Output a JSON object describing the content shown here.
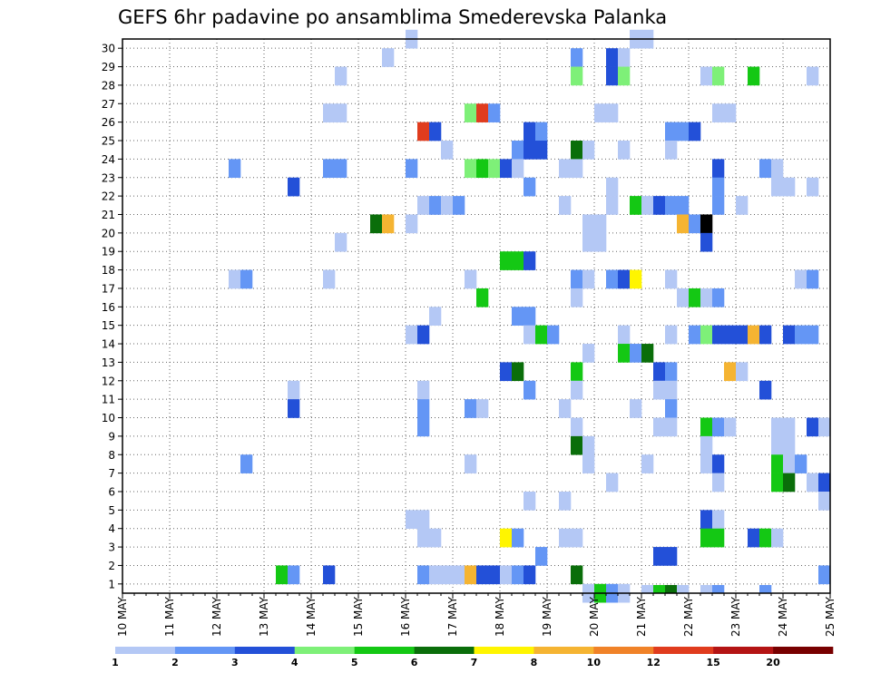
{
  "chart_data": {
    "type": "heatmap",
    "title": "GEFS 6hr padavine po ansamblima Smederevska Palanka",
    "xlabel": "",
    "ylabel": "",
    "x_tick_labels": [
      "10 MAY",
      "11 MAY",
      "12 MAY",
      "13 MAY",
      "14 MAY",
      "15 MAY",
      "16 MAY",
      "17 MAY",
      "18 MAY",
      "19 MAY",
      "20 MAY",
      "21 MAY",
      "22 MAY",
      "23 MAY",
      "24 MAY",
      "25 MAY"
    ],
    "y_tick_labels": [
      "1",
      "2",
      "3",
      "4",
      "5",
      "6",
      "7",
      "8",
      "9",
      "10",
      "11",
      "12",
      "13",
      "14",
      "15",
      "16",
      "17",
      "18",
      "19",
      "20",
      "21",
      "22",
      "23",
      "24",
      "25",
      "26",
      "27",
      "28",
      "29",
      "30"
    ],
    "time_steps": 60,
    "members": 30,
    "grid": true,
    "colorbar": {
      "labels": [
        "1",
        "2",
        "3",
        "4",
        "5",
        "6",
        "7",
        "8",
        "10",
        "12",
        "15",
        "20"
      ],
      "colors": [
        "#b4c8f5",
        "#6496f5",
        "#2350d8",
        "#7ef078",
        "#14c814",
        "#0a6e0a",
        "#fff500",
        "#f5b432",
        "#f08228",
        "#e03c1e",
        "#b41414",
        "#780000"
      ]
    },
    "cells": [
      [
        24,
        30,
        1
      ],
      [
        43,
        30,
        1
      ],
      [
        44,
        30,
        1
      ],
      [
        22,
        29,
        1
      ],
      [
        38,
        29,
        2
      ],
      [
        41,
        29,
        3
      ],
      [
        42,
        29,
        1
      ],
      [
        18,
        28,
        1
      ],
      [
        38,
        28,
        4
      ],
      [
        41,
        28,
        3
      ],
      [
        42,
        28,
        4
      ],
      [
        49,
        28,
        1
      ],
      [
        50,
        28,
        4
      ],
      [
        53,
        28,
        5
      ],
      [
        58,
        28,
        1
      ],
      [
        17,
        26,
        1
      ],
      [
        18,
        26,
        1
      ],
      [
        29,
        26,
        4
      ],
      [
        30,
        26,
        10
      ],
      [
        31,
        26,
        2
      ],
      [
        40,
        26,
        1
      ],
      [
        41,
        26,
        1
      ],
      [
        50,
        26,
        1
      ],
      [
        51,
        26,
        1
      ],
      [
        25,
        25,
        10
      ],
      [
        26,
        25,
        3
      ],
      [
        34,
        25,
        3
      ],
      [
        35,
        25,
        2
      ],
      [
        46,
        25,
        2
      ],
      [
        47,
        25,
        2
      ],
      [
        48,
        25,
        3
      ],
      [
        27,
        24,
        1
      ],
      [
        33,
        24,
        2
      ],
      [
        34,
        24,
        3
      ],
      [
        35,
        24,
        3
      ],
      [
        38,
        24,
        6
      ],
      [
        39,
        24,
        1
      ],
      [
        42,
        24,
        1
      ],
      [
        46,
        24,
        1
      ],
      [
        9,
        23,
        2
      ],
      [
        17,
        23,
        2
      ],
      [
        18,
        23,
        2
      ],
      [
        24,
        23,
        2
      ],
      [
        29,
        23,
        4
      ],
      [
        30,
        23,
        5
      ],
      [
        31,
        23,
        4
      ],
      [
        32,
        23,
        3
      ],
      [
        33,
        23,
        1
      ],
      [
        37,
        23,
        1
      ],
      [
        38,
        23,
        1
      ],
      [
        50,
        23,
        3
      ],
      [
        54,
        23,
        2
      ],
      [
        55,
        23,
        1
      ],
      [
        14,
        22,
        3
      ],
      [
        34,
        22,
        2
      ],
      [
        41,
        22,
        1
      ],
      [
        50,
        22,
        2
      ],
      [
        55,
        22,
        1
      ],
      [
        56,
        22,
        1
      ],
      [
        58,
        22,
        1
      ],
      [
        25,
        21,
        1
      ],
      [
        26,
        21,
        2
      ],
      [
        27,
        21,
        1
      ],
      [
        28,
        21,
        2
      ],
      [
        37,
        21,
        1
      ],
      [
        41,
        21,
        1
      ],
      [
        43,
        21,
        5
      ],
      [
        44,
        21,
        1
      ],
      [
        45,
        21,
        3
      ],
      [
        46,
        21,
        2
      ],
      [
        47,
        21,
        2
      ],
      [
        50,
        21,
        2
      ],
      [
        52,
        21,
        1
      ],
      [
        21,
        20,
        6
      ],
      [
        22,
        20,
        8
      ],
      [
        24,
        20,
        1
      ],
      [
        39,
        20,
        1
      ],
      [
        40,
        20,
        1
      ],
      [
        47,
        20,
        8
      ],
      [
        48,
        20,
        2
      ],
      [
        49,
        20,
        15
      ],
      [
        18,
        19,
        1
      ],
      [
        39,
        19,
        1
      ],
      [
        40,
        19,
        1
      ],
      [
        49,
        19,
        3
      ],
      [
        32,
        18,
        5
      ],
      [
        33,
        18,
        5
      ],
      [
        34,
        18,
        3
      ],
      [
        9,
        17,
        1
      ],
      [
        10,
        17,
        2
      ],
      [
        17,
        17,
        1
      ],
      [
        29,
        17,
        1
      ],
      [
        38,
        17,
        2
      ],
      [
        39,
        17,
        1
      ],
      [
        41,
        17,
        2
      ],
      [
        42,
        17,
        3
      ],
      [
        43,
        17,
        7
      ],
      [
        46,
        17,
        1
      ],
      [
        57,
        17,
        1
      ],
      [
        58,
        17,
        2
      ],
      [
        30,
        16,
        5
      ],
      [
        38,
        16,
        1
      ],
      [
        47,
        16,
        1
      ],
      [
        48,
        16,
        5
      ],
      [
        49,
        16,
        1
      ],
      [
        50,
        16,
        2
      ],
      [
        26,
        15,
        1
      ],
      [
        33,
        15,
        2
      ],
      [
        34,
        15,
        2
      ],
      [
        24,
        14,
        1
      ],
      [
        25,
        14,
        3
      ],
      [
        34,
        14,
        1
      ],
      [
        35,
        14,
        5
      ],
      [
        36,
        14,
        2
      ],
      [
        42,
        14,
        1
      ],
      [
        46,
        14,
        1
      ],
      [
        48,
        14,
        2
      ],
      [
        49,
        14,
        4
      ],
      [
        50,
        14,
        3
      ],
      [
        51,
        14,
        3
      ],
      [
        52,
        14,
        3
      ],
      [
        53,
        14,
        8
      ],
      [
        54,
        14,
        3
      ],
      [
        56,
        14,
        3
      ],
      [
        57,
        14,
        2
      ],
      [
        58,
        14,
        2
      ],
      [
        39,
        13,
        1
      ],
      [
        42,
        13,
        5
      ],
      [
        43,
        13,
        2
      ],
      [
        44,
        13,
        6
      ],
      [
        32,
        12,
        3
      ],
      [
        33,
        12,
        6
      ],
      [
        38,
        12,
        5
      ],
      [
        45,
        12,
        3
      ],
      [
        46,
        12,
        2
      ],
      [
        51,
        12,
        8
      ],
      [
        52,
        12,
        1
      ],
      [
        14,
        11,
        1
      ],
      [
        25,
        11,
        1
      ],
      [
        34,
        11,
        2
      ],
      [
        38,
        11,
        1
      ],
      [
        45,
        11,
        1
      ],
      [
        46,
        11,
        1
      ],
      [
        54,
        11,
        3
      ],
      [
        14,
        10,
        3
      ],
      [
        25,
        10,
        2
      ],
      [
        29,
        10,
        2
      ],
      [
        30,
        10,
        1
      ],
      [
        37,
        10,
        1
      ],
      [
        43,
        10,
        1
      ],
      [
        46,
        10,
        2
      ],
      [
        25,
        9,
        2
      ],
      [
        38,
        9,
        1
      ],
      [
        45,
        9,
        1
      ],
      [
        46,
        9,
        1
      ],
      [
        49,
        9,
        5
      ],
      [
        50,
        9,
        2
      ],
      [
        51,
        9,
        1
      ],
      [
        55,
        9,
        1
      ],
      [
        56,
        9,
        1
      ],
      [
        58,
        9,
        3
      ],
      [
        59,
        9,
        1
      ],
      [
        38,
        8,
        6
      ],
      [
        39,
        8,
        1
      ],
      [
        49,
        8,
        1
      ],
      [
        55,
        8,
        1
      ],
      [
        56,
        8,
        1
      ],
      [
        10,
        7,
        2
      ],
      [
        29,
        7,
        1
      ],
      [
        39,
        7,
        1
      ],
      [
        44,
        7,
        1
      ],
      [
        49,
        7,
        1
      ],
      [
        50,
        7,
        3
      ],
      [
        55,
        7,
        5
      ],
      [
        56,
        7,
        1
      ],
      [
        57,
        7,
        2
      ],
      [
        41,
        6,
        1
      ],
      [
        50,
        6,
        1
      ],
      [
        55,
        6,
        5
      ],
      [
        56,
        6,
        6
      ],
      [
        58,
        6,
        1
      ],
      [
        59,
        6,
        3
      ],
      [
        34,
        5,
        1
      ],
      [
        37,
        5,
        1
      ],
      [
        59,
        5,
        1
      ],
      [
        24,
        4,
        1
      ],
      [
        25,
        4,
        1
      ],
      [
        49,
        4,
        3
      ],
      [
        50,
        4,
        1
      ],
      [
        25,
        3,
        1
      ],
      [
        26,
        3,
        1
      ],
      [
        32,
        3,
        7
      ],
      [
        33,
        3,
        2
      ],
      [
        37,
        3,
        1
      ],
      [
        38,
        3,
        1
      ],
      [
        49,
        3,
        5
      ],
      [
        50,
        3,
        5
      ],
      [
        53,
        3,
        3
      ],
      [
        54,
        3,
        5
      ],
      [
        55,
        3,
        1
      ],
      [
        35,
        2,
        2
      ],
      [
        45,
        2,
        3
      ],
      [
        46,
        2,
        3
      ],
      [
        13,
        1,
        5
      ],
      [
        14,
        1,
        2
      ],
      [
        17,
        1,
        3
      ],
      [
        25,
        1,
        2
      ],
      [
        26,
        1,
        1
      ],
      [
        27,
        1,
        1
      ],
      [
        28,
        1,
        1
      ],
      [
        29,
        1,
        8
      ],
      [
        30,
        1,
        3
      ],
      [
        31,
        1,
        3
      ],
      [
        32,
        1,
        1
      ],
      [
        33,
        1,
        2
      ],
      [
        34,
        1,
        3
      ],
      [
        38,
        1,
        6
      ],
      [
        59,
        1,
        2
      ],
      [
        39,
        0,
        1
      ],
      [
        40,
        0,
        5
      ],
      [
        41,
        0,
        2
      ],
      [
        42,
        0,
        1
      ]
    ],
    "below_axis_cells": [
      [
        44,
        1
      ],
      [
        45,
        5
      ],
      [
        46,
        6
      ],
      [
        47,
        1
      ],
      [
        49,
        1
      ],
      [
        50,
        2
      ],
      [
        54,
        2
      ]
    ]
  }
}
